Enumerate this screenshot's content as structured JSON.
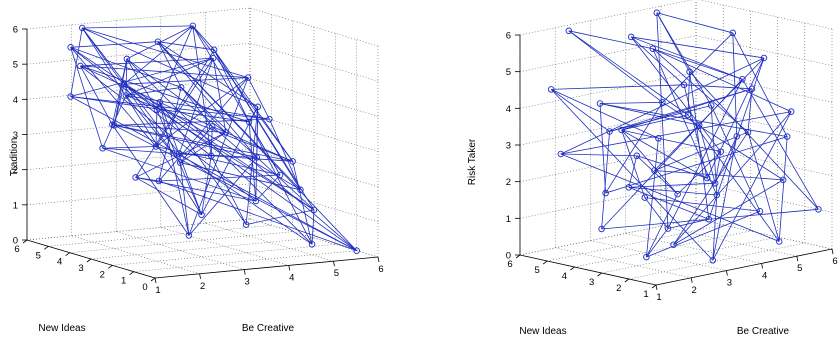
{
  "figure": {
    "line_color": "#1f2ebf",
    "marker": "circle-open"
  },
  "chart_data": [
    {
      "type": "scatter",
      "style": "3d line plot with circle markers, boxed 3-D axes, dotted grid",
      "title": "",
      "xlabel": "Be Creative",
      "ylabel": "New Ideas",
      "zlabel": "Tradition",
      "xlim": [
        1,
        6
      ],
      "ylim": [
        0,
        6
      ],
      "zlim": [
        0,
        6
      ],
      "xticks": [
        "1",
        "2",
        "3",
        "4",
        "5",
        "6"
      ],
      "yticks": [
        "0",
        "1",
        "2",
        "3",
        "4",
        "5",
        "6"
      ],
      "zticks": [
        "0",
        "1",
        "2",
        "3",
        "4",
        "5",
        "6"
      ],
      "grid": true,
      "points": [
        [
          2.0,
          5.5,
          6.0
        ],
        [
          4.0,
          4.5,
          6.0
        ],
        [
          1.5,
          5.0,
          5.6
        ],
        [
          3.0,
          5.5,
          5.0
        ],
        [
          1.0,
          3.5,
          5.4
        ],
        [
          2.5,
          3.0,
          6.0
        ],
        [
          4.0,
          3.5,
          5.5
        ],
        [
          5.0,
          4.0,
          4.5
        ],
        [
          2.5,
          4.5,
          4.2
        ],
        [
          3.5,
          4.0,
          4.4
        ],
        [
          1.5,
          2.5,
          5.0
        ],
        [
          5.5,
          5.0,
          3.0
        ],
        [
          4.5,
          2.5,
          4.0
        ],
        [
          2.0,
          2.0,
          4.3
        ],
        [
          6.0,
          4.0,
          2.0
        ],
        [
          3.0,
          1.5,
          3.8
        ],
        [
          1.5,
          1.0,
          3.5
        ],
        [
          4.0,
          1.5,
          2.8
        ],
        [
          5.0,
          2.5,
          2.0
        ],
        [
          2.0,
          4.0,
          3.5
        ],
        [
          3.0,
          3.0,
          2.5
        ],
        [
          6.0,
          3.0,
          0.8
        ],
        [
          3.5,
          0.5,
          1.8
        ],
        [
          2.0,
          0.5,
          1.0
        ],
        [
          5.0,
          1.0,
          0.3
        ],
        [
          6.0,
          1.0,
          0.0
        ],
        [
          1.5,
          3.5,
          3.0
        ],
        [
          3.5,
          5.0,
          3.8
        ],
        [
          4.5,
          0.5,
          2.0
        ],
        [
          2.5,
          2.0,
          3.0
        ],
        [
          1.0,
          2.0,
          4.0
        ],
        [
          3.0,
          4.0,
          1.8
        ],
        [
          4.0,
          2.0,
          0.8
        ],
        [
          2.5,
          0.5,
          3.2
        ],
        [
          5.0,
          3.0,
          3.5
        ],
        [
          1.5,
          5.0,
          4.2
        ],
        [
          3.5,
          2.5,
          5.5
        ],
        [
          4.5,
          4.0,
          3.0
        ],
        [
          2.0,
          3.0,
          2.2
        ],
        [
          3.0,
          2.0,
          1.2
        ]
      ],
      "edges": [
        [
          0,
          1
        ],
        [
          0,
          7
        ],
        [
          0,
          12
        ],
        [
          0,
          20
        ],
        [
          0,
          29
        ],
        [
          0,
          35
        ],
        [
          1,
          3
        ],
        [
          1,
          6
        ],
        [
          1,
          10
        ],
        [
          1,
          14
        ],
        [
          1,
          18
        ],
        [
          1,
          27
        ],
        [
          2,
          5
        ],
        [
          2,
          9
        ],
        [
          2,
          16
        ],
        [
          2,
          21
        ],
        [
          2,
          33
        ],
        [
          3,
          8
        ],
        [
          3,
          13
        ],
        [
          3,
          19
        ],
        [
          3,
          24
        ],
        [
          3,
          30
        ],
        [
          4,
          7
        ],
        [
          4,
          11
        ],
        [
          4,
          15
        ],
        [
          4,
          22
        ],
        [
          4,
          36
        ],
        [
          5,
          6
        ],
        [
          5,
          9
        ],
        [
          5,
          12
        ],
        [
          5,
          17
        ],
        [
          5,
          25
        ],
        [
          6,
          11
        ],
        [
          6,
          14
        ],
        [
          6,
          28
        ],
        [
          6,
          38
        ],
        [
          7,
          10
        ],
        [
          7,
          16
        ],
        [
          7,
          23
        ],
        [
          7,
          31
        ],
        [
          8,
          9
        ],
        [
          8,
          14
        ],
        [
          8,
          20
        ],
        [
          8,
          26
        ],
        [
          8,
          34
        ],
        [
          9,
          15
        ],
        [
          9,
          21
        ],
        [
          9,
          37
        ],
        [
          10,
          13
        ],
        [
          10,
          19
        ],
        [
          10,
          28
        ],
        [
          11,
          12
        ],
        [
          11,
          18
        ],
        [
          11,
          24
        ],
        [
          11,
          35
        ],
        [
          12,
          17
        ],
        [
          12,
          22
        ],
        [
          12,
          32
        ],
        [
          13,
          16
        ],
        [
          13,
          21
        ],
        [
          13,
          27
        ],
        [
          13,
          39
        ],
        [
          14,
          15
        ],
        [
          14,
          24
        ],
        [
          14,
          30
        ],
        [
          15,
          20
        ],
        [
          15,
          25
        ],
        [
          15,
          33
        ],
        [
          16,
          18
        ],
        [
          16,
          26
        ],
        [
          16,
          36
        ],
        [
          17,
          19
        ],
        [
          17,
          23
        ],
        [
          17,
          29
        ],
        [
          18,
          22
        ],
        [
          18,
          31
        ],
        [
          19,
          25
        ],
        [
          19,
          34
        ],
        [
          20,
          23
        ],
        [
          20,
          28
        ],
        [
          20,
          37
        ],
        [
          21,
          24
        ],
        [
          21,
          32
        ],
        [
          22,
          26
        ],
        [
          22,
          38
        ],
        [
          23,
          27
        ],
        [
          23,
          30
        ],
        [
          24,
          29
        ],
        [
          25,
          31
        ],
        [
          25,
          35
        ],
        [
          26,
          33
        ],
        [
          27,
          32
        ],
        [
          27,
          39
        ],
        [
          28,
          34
        ],
        [
          29,
          36
        ],
        [
          30,
          37
        ],
        [
          31,
          38
        ],
        [
          32,
          33
        ],
        [
          33,
          39
        ],
        [
          34,
          35
        ],
        [
          35,
          36
        ],
        [
          36,
          37
        ],
        [
          37,
          38
        ],
        [
          38,
          39
        ],
        [
          0,
          39
        ],
        [
          2,
          26
        ],
        [
          4,
          30
        ],
        [
          6,
          21
        ],
        [
          8,
          36
        ],
        [
          10,
          25
        ],
        [
          12,
          39
        ],
        [
          14,
          29
        ],
        [
          1,
          33
        ],
        [
          3,
          37
        ],
        [
          5,
          28
        ],
        [
          7,
          34
        ],
        [
          9,
          31
        ],
        [
          11,
          22
        ]
      ]
    },
    {
      "type": "scatter",
      "style": "3d line plot with circle markers, boxed 3-D axes, dotted grid",
      "title": "",
      "xlabel": "Be Creative",
      "ylabel": "New Ideas",
      "zlabel": "Risk Taker",
      "xlim": [
        1,
        6
      ],
      "ylim": [
        1,
        6
      ],
      "zlim": [
        0,
        6
      ],
      "xticks": [
        "1",
        "2",
        "3",
        "4",
        "5",
        "6"
      ],
      "yticks": [
        "1",
        "2",
        "3",
        "4",
        "5",
        "6"
      ],
      "zticks": [
        "0",
        "1",
        "2",
        "3",
        "4",
        "5",
        "6"
      ],
      "grid": true,
      "points": [
        [
          2.0,
          5.5,
          6.0
        ],
        [
          4.5,
          5.5,
          6.0
        ],
        [
          3.0,
          4.5,
          5.8
        ],
        [
          5.5,
          4.0,
          5.5
        ],
        [
          1.5,
          5.5,
          4.5
        ],
        [
          4.0,
          5.0,
          5.2
        ],
        [
          6.0,
          3.5,
          4.8
        ],
        [
          2.0,
          4.0,
          3.5
        ],
        [
          3.5,
          4.0,
          4.0
        ],
        [
          5.0,
          3.0,
          4.5
        ],
        [
          1.0,
          4.5,
          3.0
        ],
        [
          3.0,
          3.5,
          3.2
        ],
        [
          4.5,
          3.5,
          3.8
        ],
        [
          6.0,
          2.5,
          3.5
        ],
        [
          1.5,
          3.5,
          2.0
        ],
        [
          2.5,
          3.0,
          2.5
        ],
        [
          4.0,
          2.5,
          2.8
        ],
        [
          5.5,
          2.0,
          3.0
        ],
        [
          1.0,
          3.0,
          1.2
        ],
        [
          2.5,
          2.5,
          1.0
        ],
        [
          3.5,
          2.0,
          1.8
        ],
        [
          5.0,
          1.5,
          2.0
        ],
        [
          1.5,
          2.0,
          0.5
        ],
        [
          3.0,
          1.5,
          0.2
        ],
        [
          4.5,
          1.0,
          0.5
        ],
        [
          6.0,
          1.5,
          1.0
        ],
        [
          2.0,
          1.5,
          2.2
        ],
        [
          3.5,
          3.0,
          5.0
        ],
        [
          4.5,
          4.5,
          4.2
        ],
        [
          2.5,
          5.0,
          4.0
        ],
        [
          5.0,
          5.0,
          3.2
        ],
        [
          3.0,
          2.0,
          3.8
        ],
        [
          4.0,
          3.0,
          2.0
        ],
        [
          1.5,
          1.0,
          1.0
        ],
        [
          5.5,
          3.0,
          0.8
        ],
        [
          2.0,
          3.0,
          3.0
        ],
        [
          4.0,
          1.5,
          3.5
        ],
        [
          3.0,
          4.0,
          1.5
        ],
        [
          6.0,
          4.5,
          2.5
        ],
        [
          2.5,
          1.0,
          1.5
        ],
        [
          4.5,
          2.0,
          4.5
        ],
        [
          3.5,
          5.5,
          3.0
        ],
        [
          5.0,
          4.0,
          1.5
        ],
        [
          1.0,
          2.0,
          2.5
        ]
      ],
      "edges": [
        [
          0,
          5
        ],
        [
          0,
          8
        ],
        [
          1,
          3
        ],
        [
          1,
          12
        ],
        [
          1,
          27
        ],
        [
          2,
          6
        ],
        [
          2,
          9
        ],
        [
          2,
          16
        ],
        [
          3,
          8
        ],
        [
          3,
          17
        ],
        [
          4,
          7
        ],
        [
          4,
          11
        ],
        [
          4,
          28
        ],
        [
          5,
          9
        ],
        [
          5,
          13
        ],
        [
          5,
          20
        ],
        [
          6,
          10
        ],
        [
          6,
          15
        ],
        [
          6,
          32
        ],
        [
          7,
          12
        ],
        [
          7,
          18
        ],
        [
          8,
          14
        ],
        [
          8,
          21
        ],
        [
          9,
          19
        ],
        [
          9,
          25
        ],
        [
          10,
          13
        ],
        [
          10,
          24
        ],
        [
          11,
          16
        ],
        [
          11,
          22
        ],
        [
          12,
          20
        ],
        [
          12,
          34
        ],
        [
          13,
          23
        ],
        [
          14,
          17
        ],
        [
          14,
          29
        ],
        [
          15,
          21
        ],
        [
          15,
          36
        ],
        [
          16,
          26
        ],
        [
          17,
          24
        ],
        [
          18,
          25
        ],
        [
          18,
          31
        ],
        [
          19,
          22
        ],
        [
          19,
          37
        ],
        [
          20,
          23
        ],
        [
          21,
          33
        ],
        [
          22,
          26
        ],
        [
          23,
          38
        ],
        [
          24,
          30
        ],
        [
          25,
          27
        ],
        [
          26,
          35
        ],
        [
          27,
          39
        ],
        [
          28,
          32
        ],
        [
          28,
          40
        ],
        [
          29,
          31
        ],
        [
          30,
          41
        ],
        [
          31,
          42
        ],
        [
          32,
          35
        ],
        [
          33,
          36
        ],
        [
          34,
          37
        ],
        [
          35,
          43
        ],
        [
          36,
          40
        ],
        [
          37,
          41
        ],
        [
          38,
          42
        ],
        [
          39,
          43
        ],
        [
          40,
          41
        ],
        [
          41,
          42
        ],
        [
          42,
          43
        ],
        [
          0,
          30
        ],
        [
          2,
          28
        ],
        [
          3,
          38
        ],
        [
          5,
          36
        ],
        [
          7,
          40
        ],
        [
          9,
          31
        ],
        [
          10,
          35
        ],
        [
          11,
          41
        ],
        [
          13,
          33
        ],
        [
          16,
          42
        ],
        [
          17,
          29
        ],
        [
          19,
          39
        ],
        [
          20,
          43
        ],
        [
          22,
          34
        ],
        [
          24,
          36
        ],
        [
          26,
          41
        ],
        [
          27,
          30
        ],
        [
          1,
          19
        ],
        [
          4,
          23
        ],
        [
          6,
          39
        ],
        [
          8,
          29
        ]
      ]
    }
  ]
}
